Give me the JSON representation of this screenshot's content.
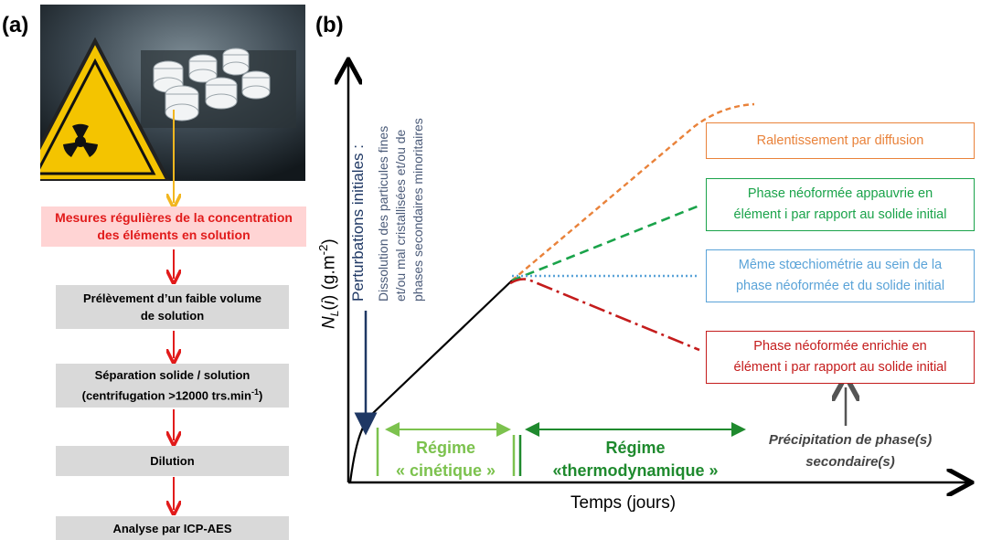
{
  "panel_a": {
    "label": "(a)",
    "steps": [
      {
        "line1": "Mesures régulières de la concentration",
        "line2": "des éléments en solution"
      },
      {
        "line1": "Prélèvement d’un faible volume",
        "line2": "de solution"
      },
      {
        "line1": "Séparation solide / solution",
        "line2": "(centrifugation >12000 trs.min",
        "sup": "-1",
        "tail": ")"
      },
      {
        "line1": "Dilution"
      },
      {
        "line1": "Analyse par ICP-AES"
      }
    ]
  },
  "panel_b": {
    "label": "(b)",
    "y_axis": {
      "prefix": "N",
      "sub": "L",
      "mid": "(",
      "italic_i": "i",
      "suffix": ") (g.m",
      "sup": "-2",
      "close": ")"
    },
    "x_axis": "Temps (jours)",
    "initial_title": "Perturbations initiales :",
    "initial_lines": [
      "Dissolution des particules fines",
      "et/ou mal cristallisées et/ou de",
      "phases secondaires minoritaires"
    ],
    "regime_kinetic": [
      "Régime",
      "« cinétique »"
    ],
    "regime_thermo": [
      "Régime",
      "«thermodynamique »"
    ],
    "precipitation": [
      "Précipitation de phase(s)",
      "secondaire(s)"
    ],
    "boxes": {
      "diffusion": [
        "Ralentissement par diffusion"
      ],
      "depleted": [
        "Phase néoformée appauvrie en",
        "élément i par rapport au solide initial"
      ],
      "same": [
        "Même stœchiométrie au sein de la",
        "phase néoformée et du solide initial"
      ],
      "enriched": [
        "Phase néoformée enrichie en",
        "élément i par rapport au solide initial"
      ]
    },
    "colors": {
      "diffusion": "#e9823a",
      "depleted": "#1aa34a",
      "same": "#5aa3d8",
      "enriched": "#c41c1c",
      "kinetic": "#7cc24e",
      "thermo": "#1f8a2e",
      "initial_arrow": "#1f3864",
      "initial_text": "#4a5a78"
    }
  }
}
